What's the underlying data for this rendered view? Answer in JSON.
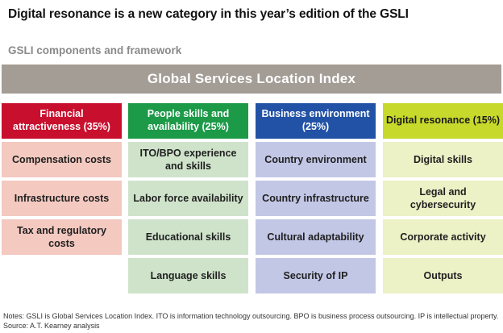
{
  "title": "Digital resonance is a new category in this year’s edition of the GSLI",
  "subtitle": "GSLI components and framework",
  "banner": "Global Services Location Index",
  "columns": [
    {
      "header": "Financial attractiveness (35%)",
      "header_bg": "#c8102e",
      "header_fg": "#ffffff",
      "cell_bg": "#f3c9c0",
      "items": [
        "Compensation costs",
        "Infrastructure costs",
        "Tax and regulatory costs"
      ]
    },
    {
      "header": "People skills and availability (25%)",
      "header_bg": "#1c9a48",
      "header_fg": "#ffffff",
      "cell_bg": "#cfe3cb",
      "items": [
        "ITO/BPO experience and skills",
        "Labor force availability",
        "Educational skills",
        "Language skills"
      ]
    },
    {
      "header": "Business environment (25%)",
      "header_bg": "#2252a6",
      "header_fg": "#ffffff",
      "cell_bg": "#c3c7e6",
      "items": [
        "Country environment",
        "Country infrastructure",
        "Cultural adaptability",
        "Security of IP"
      ]
    },
    {
      "header": "Digital resonance (15%)",
      "header_bg": "#c7d92b",
      "header_fg": "#1a1a1a",
      "cell_bg": "#ecf1c6",
      "items": [
        "Digital skills",
        "Legal and cybersecurity",
        "Corporate activity",
        "Outputs"
      ]
    }
  ],
  "notes": "Notes: GSLI is Global Services Location Index. ITO is information technology outsourcing. BPO is business process outsourcing. IP is intellectual property.",
  "source": "Source: A.T. Kearney analysis"
}
